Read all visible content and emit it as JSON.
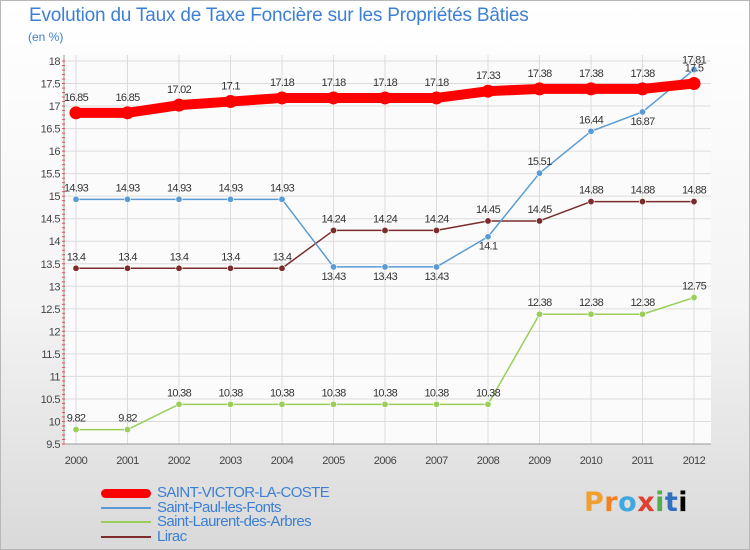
{
  "title": "Evolution du Taux de Taxe Foncière sur les Propriétés Bâties",
  "unit_label": "(en %)",
  "logo_text": "Proxiti",
  "chart_data": {
    "type": "line",
    "x": [
      "2000",
      "2001",
      "2002",
      "2003",
      "2004",
      "2005",
      "2006",
      "2007",
      "2008",
      "2009",
      "2010",
      "2011",
      "2012"
    ],
    "ylim": [
      9.5,
      18
    ],
    "yticks": [
      9.5,
      10,
      10.5,
      11,
      11.5,
      12,
      12.5,
      13,
      13.5,
      14,
      14.5,
      15,
      15.5,
      16,
      16.5,
      17,
      17.5,
      18
    ],
    "grid": true,
    "legend_position": "bottom-left",
    "series": [
      {
        "name": "SAINT-VICTOR-LA-COSTE",
        "color": "#ff0000",
        "values": [
          16.85,
          16.85,
          17.02,
          17.1,
          17.18,
          17.18,
          17.18,
          17.18,
          17.33,
          17.38,
          17.38,
          17.38,
          17.5
        ],
        "labels": [
          "16.85",
          "16.85",
          "17.02",
          "17.1",
          "17.18",
          "17.18",
          "17.18",
          "17.18",
          "17.33",
          "17.38",
          "17.38",
          "17.38",
          "17.5"
        ]
      },
      {
        "name": "Saint-Paul-les-Fonts",
        "color": "#5b9bd5",
        "values": [
          14.93,
          14.93,
          14.93,
          14.93,
          14.93,
          13.43,
          13.43,
          13.43,
          14.1,
          15.51,
          16.44,
          16.87,
          17.81
        ],
        "labels": [
          "14.93",
          "14.93",
          "14.93",
          "14.93",
          "14.93",
          "13.43",
          "13.43",
          "13.43",
          "14.1",
          "15.51",
          "16.44",
          "16.87",
          "17.81"
        ]
      },
      {
        "name": "Saint-Laurent-des-Arbres",
        "color": "#9acd5a",
        "values": [
          9.82,
          9.82,
          10.38,
          10.38,
          10.38,
          10.38,
          10.38,
          10.38,
          10.38,
          12.38,
          12.38,
          12.38,
          12.75
        ],
        "labels": [
          "9.82",
          "9.82",
          "10.38",
          "10.38",
          "10.38",
          "10.38",
          "10.38",
          "10.38",
          "10.38",
          "12.38",
          "12.38",
          "12.38",
          "12.75"
        ]
      },
      {
        "name": "Lirac",
        "color": "#7b2c2c",
        "values": [
          13.4,
          13.4,
          13.4,
          13.4,
          13.4,
          14.24,
          14.24,
          14.24,
          14.45,
          14.45,
          14.88,
          14.88,
          14.88
        ],
        "labels": [
          "13.4",
          "13.4",
          "13.4",
          "13.4",
          "13.4",
          "14.24",
          "14.24",
          "14.24",
          "14.45",
          "14.45",
          "14.88",
          "14.88",
          "14.88"
        ]
      }
    ]
  }
}
